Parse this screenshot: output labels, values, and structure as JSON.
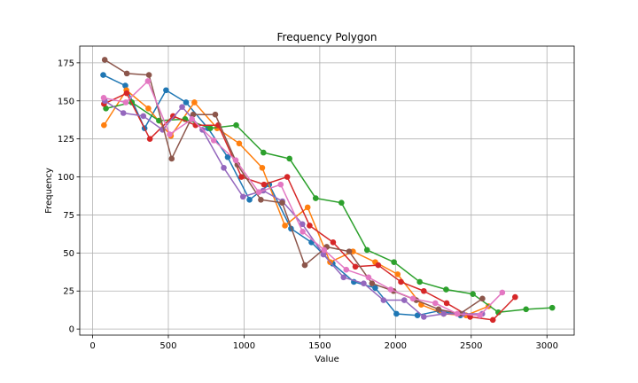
{
  "chart_data": {
    "type": "line",
    "title": "Frequency Polygon",
    "xlabel": "Value",
    "ylabel": "Frequency",
    "xlim": [
      -85,
      3180
    ],
    "ylim": [
      -4,
      186
    ],
    "xticks": [
      0,
      500,
      1000,
      1500,
      2000,
      2500,
      3000
    ],
    "yticks": [
      0,
      25,
      50,
      75,
      100,
      125,
      150,
      175
    ],
    "grid": true,
    "legend": "none",
    "series": [
      {
        "color": "#1f77b4",
        "x": [
          70,
          216,
          343,
          485,
          617,
          762,
          892,
          1036,
          1166,
          1310,
          1445,
          1585,
          1725,
          1866,
          2006,
          2145,
          2289,
          2429
        ],
        "y": [
          167,
          160,
          132,
          157,
          149,
          132,
          113,
          85,
          95,
          66,
          57,
          43,
          31,
          27,
          10,
          9,
          12,
          9
        ]
      },
      {
        "color": "#ff7f0e",
        "x": [
          75,
          223,
          368,
          517,
          672,
          822,
          968,
          1120,
          1270,
          1420,
          1568,
          1719,
          1866,
          2014,
          2170,
          2318,
          2466,
          2614
        ],
        "y": [
          134,
          157,
          145,
          127,
          149,
          132,
          122,
          106,
          68,
          80,
          44,
          51,
          44,
          36,
          16,
          10,
          9,
          15
        ]
      },
      {
        "color": "#2ca02c",
        "x": [
          88,
          259,
          438,
          611,
          777,
          948,
          1128,
          1300,
          1473,
          1643,
          1812,
          1990,
          2160,
          2334,
          2511,
          2679,
          2862,
          3035
        ],
        "y": [
          145,
          149,
          137,
          138,
          132,
          134,
          116,
          112,
          86,
          83,
          52,
          44,
          31,
          26,
          23,
          11,
          13,
          14
        ]
      },
      {
        "color": "#d62728",
        "x": [
          75,
          225,
          378,
          531,
          680,
          830,
          983,
          1132,
          1285,
          1433,
          1588,
          1735,
          1886,
          2036,
          2187,
          2338,
          2493,
          2643,
          2790
        ],
        "y": [
          148,
          155,
          125,
          140,
          134,
          134,
          100,
          95,
          100,
          68,
          57,
          41,
          42,
          31,
          25,
          17,
          8,
          6,
          21
        ]
      },
      {
        "color": "#9467bd",
        "x": [
          80,
          203,
          335,
          462,
          591,
          725,
          866,
          993,
          1126,
          1253,
          1385,
          1524,
          1657,
          1790,
          1921,
          2058,
          2187,
          2318,
          2445,
          2573
        ],
        "y": [
          150,
          142,
          140,
          131,
          146,
          131,
          106,
          87,
          91,
          84,
          69,
          49,
          34,
          30,
          19,
          19,
          8,
          10,
          10,
          10
        ]
      },
      {
        "color": "#8c564b",
        "x": [
          80,
          226,
          372,
          522,
          664,
          810,
          956,
          1111,
          1252,
          1401,
          1546,
          1694,
          1845,
          1987,
          2137,
          2284,
          2425,
          2574,
          2720
        ],
        "y": [
          177,
          168,
          167,
          112,
          141,
          141,
          108,
          85,
          83,
          42,
          54,
          51,
          30,
          25,
          19,
          13,
          10,
          20,
          null
        ]
      },
      {
        "color": "#e377c2",
        "x": [
          73,
          219,
          365,
          509,
          656,
          800,
          945,
          1097,
          1242,
          1387,
          1529,
          1675,
          1822,
          1968,
          2115,
          2263,
          2408,
          2557,
          2705
        ],
        "y": [
          152,
          149,
          163,
          128,
          138,
          124,
          111,
          90,
          95,
          64,
          52,
          39,
          34,
          26,
          20,
          17,
          10,
          9,
          24
        ]
      }
    ]
  }
}
